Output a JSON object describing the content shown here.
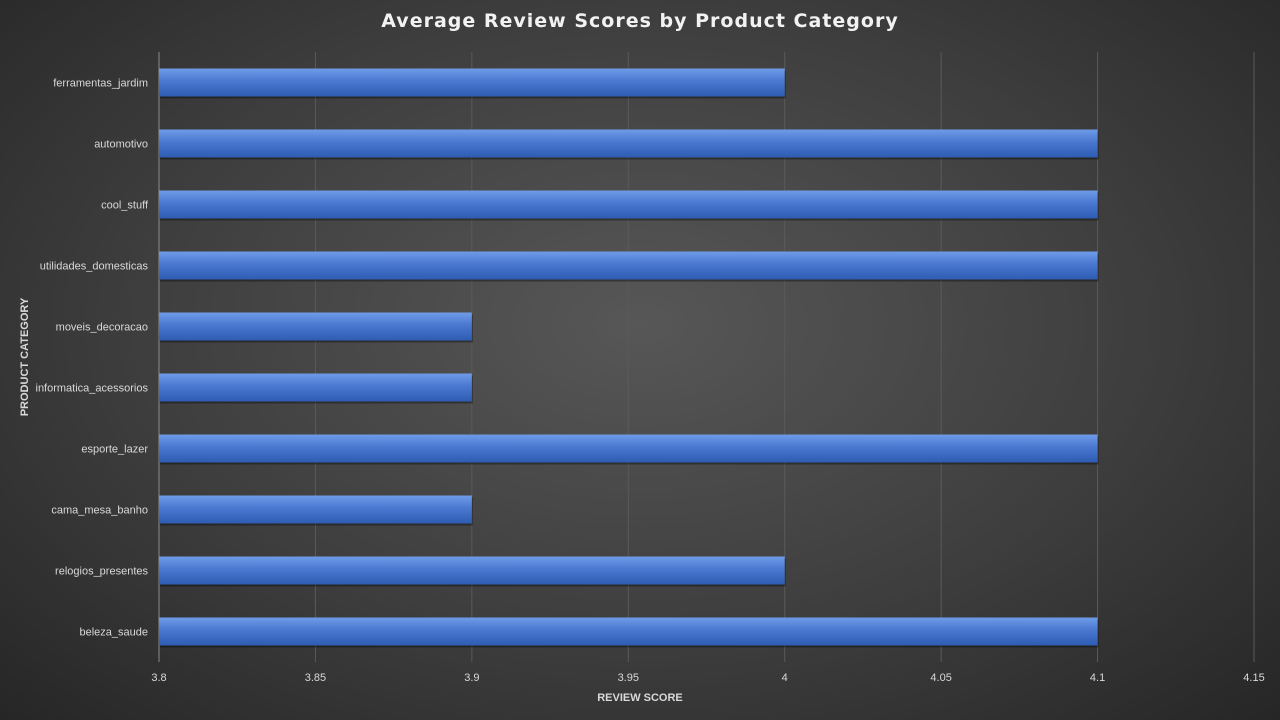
{
  "chart_data": {
    "type": "bar",
    "orientation": "horizontal",
    "title": "Average Review Scores by Product Category",
    "xlabel": "REVIEW SCORE",
    "ylabel": "PRODUCT CATEGORY",
    "categories": [
      "ferramentas_jardim",
      "automotivo",
      "cool_stuff",
      "utilidades_domesticas",
      "moveis_decoracao",
      "informatica_acessorios",
      "esporte_lazer",
      "cama_mesa_banho",
      "relogios_presentes",
      "beleza_saude"
    ],
    "values": [
      4.0,
      4.1,
      4.1,
      4.1,
      3.9,
      3.9,
      4.1,
      3.9,
      4.0,
      4.1
    ],
    "xlim": [
      3.8,
      4.15
    ],
    "xticks": [
      "3.8",
      "3.85",
      "3.9",
      "3.95",
      "4",
      "4.05",
      "4.1",
      "4.15"
    ],
    "grid": true,
    "colors": {
      "bar": "#4472c4",
      "bar_light": "#5b8be0",
      "grid": "#5a5a5a",
      "text": "#d9d9d9"
    }
  }
}
